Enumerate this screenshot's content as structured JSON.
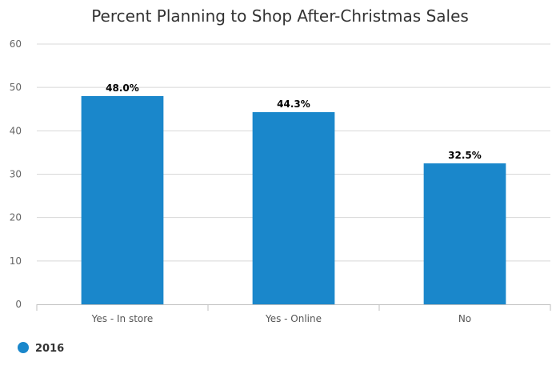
{
  "chart_data": {
    "type": "bar",
    "title": "Percent Planning to Shop After-Christmas Sales",
    "categories": [
      "Yes - In store",
      "Yes - Online",
      "No"
    ],
    "series": [
      {
        "name": "2016",
        "values": [
          48.0,
          44.3,
          32.5
        ],
        "color": "#1a87cb",
        "labels": [
          "48.0%",
          "44.3%",
          "32.5%"
        ]
      }
    ],
    "yticks": [
      "0",
      "10",
      "20",
      "30",
      "40",
      "50",
      "60"
    ],
    "ylim": [
      0,
      60
    ],
    "grid": true,
    "legend_position": "bottom-left"
  }
}
